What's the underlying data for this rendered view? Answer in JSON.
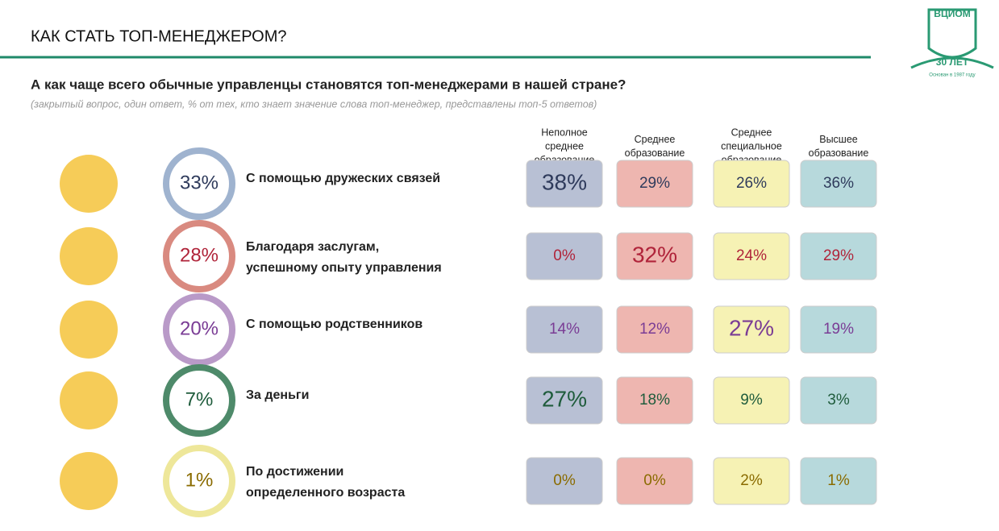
{
  "header": {
    "title": "КАК СТАТЬ ТОП-МЕНЕДЖЕРОМ?",
    "question": "А как чаще всего обычные управленцы становятся топ-менеджерами в нашей стране?",
    "note": "(закрытый вопрос, один ответ, % от тех, кто знает значение слова топ-менеджер, представлены топ-5 ответов)"
  },
  "logo": {
    "name": "ВЦИОМ",
    "years": "30 ЛЕТ",
    "founded": "Основан в 1987 году"
  },
  "columns": [
    [
      "Неполное",
      "среднее",
      "образование"
    ],
    [
      "Среднее",
      "образование"
    ],
    [
      "Среднее",
      "специальное",
      "образование"
    ],
    [
      "Высшее",
      "образование"
    ]
  ],
  "rows": [
    {
      "total": "33%",
      "label": [
        "С помощью дружеских связей"
      ],
      "cells": [
        "38%",
        "29%",
        "26%",
        "36%"
      ]
    },
    {
      "total": "28%",
      "label": [
        "Благодаря заслугам,",
        "успешному опыту управления"
      ],
      "cells": [
        "0%",
        "32%",
        "24%",
        "29%"
      ]
    },
    {
      "total": "20%",
      "label": [
        "С помощью родственников"
      ],
      "cells": [
        "14%",
        "12%",
        "27%",
        "19%"
      ]
    },
    {
      "total": "7%",
      "label": [
        "За деньги"
      ],
      "cells": [
        "27%",
        "18%",
        "9%",
        "3%"
      ]
    },
    {
      "total": "1%",
      "label": [
        "По достижении",
        "определенного возраста"
      ],
      "cells": [
        "0%",
        "0%",
        "2%",
        "1%"
      ]
    }
  ]
}
